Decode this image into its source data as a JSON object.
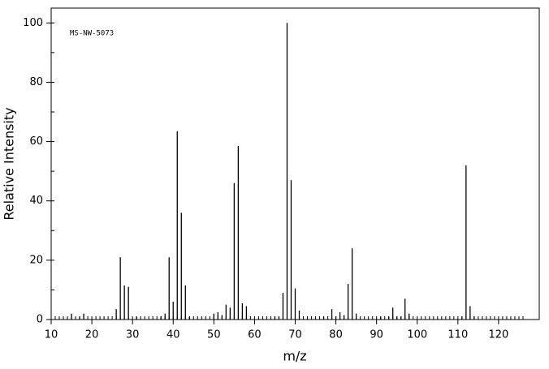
{
  "chart_data": {
    "type": "bar",
    "annotation": "MS-NW-5073",
    "x_label": "m/z",
    "y_label": "Relative Intensity",
    "x": [
      15,
      17,
      18,
      26,
      27,
      28,
      29,
      31,
      37,
      38,
      39,
      40,
      41,
      42,
      43,
      44,
      50,
      51,
      52,
      53,
      54,
      55,
      56,
      57,
      58,
      65,
      66,
      67,
      68,
      69,
      70,
      71,
      77,
      79,
      80,
      81,
      82,
      83,
      84,
      85,
      91,
      93,
      94,
      95,
      96,
      97,
      98,
      111,
      112,
      113,
      114
    ],
    "values": [
      2,
      1,
      2,
      3.5,
      21,
      11.5,
      11,
      1,
      1,
      2,
      21,
      6,
      63.5,
      36,
      11.5,
      1,
      2,
      2.5,
      1.5,
      5,
      4,
      46,
      58.5,
      5.5,
      4.5,
      1,
      1,
      9,
      100,
      47,
      10.5,
      3,
      1,
      3.5,
      1,
      2.5,
      1.5,
      12,
      24,
      2,
      1,
      1,
      4,
      1,
      1,
      7,
      2,
      1,
      52,
      4.5,
      1
    ],
    "color": "#000000",
    "xlim": [
      10,
      130
    ],
    "ylim": [
      0,
      105
    ],
    "xticks": [
      10,
      20,
      30,
      40,
      50,
      60,
      70,
      80,
      90,
      100,
      110,
      120
    ],
    "yticks": [
      0,
      20,
      40,
      60,
      80,
      100
    ]
  }
}
